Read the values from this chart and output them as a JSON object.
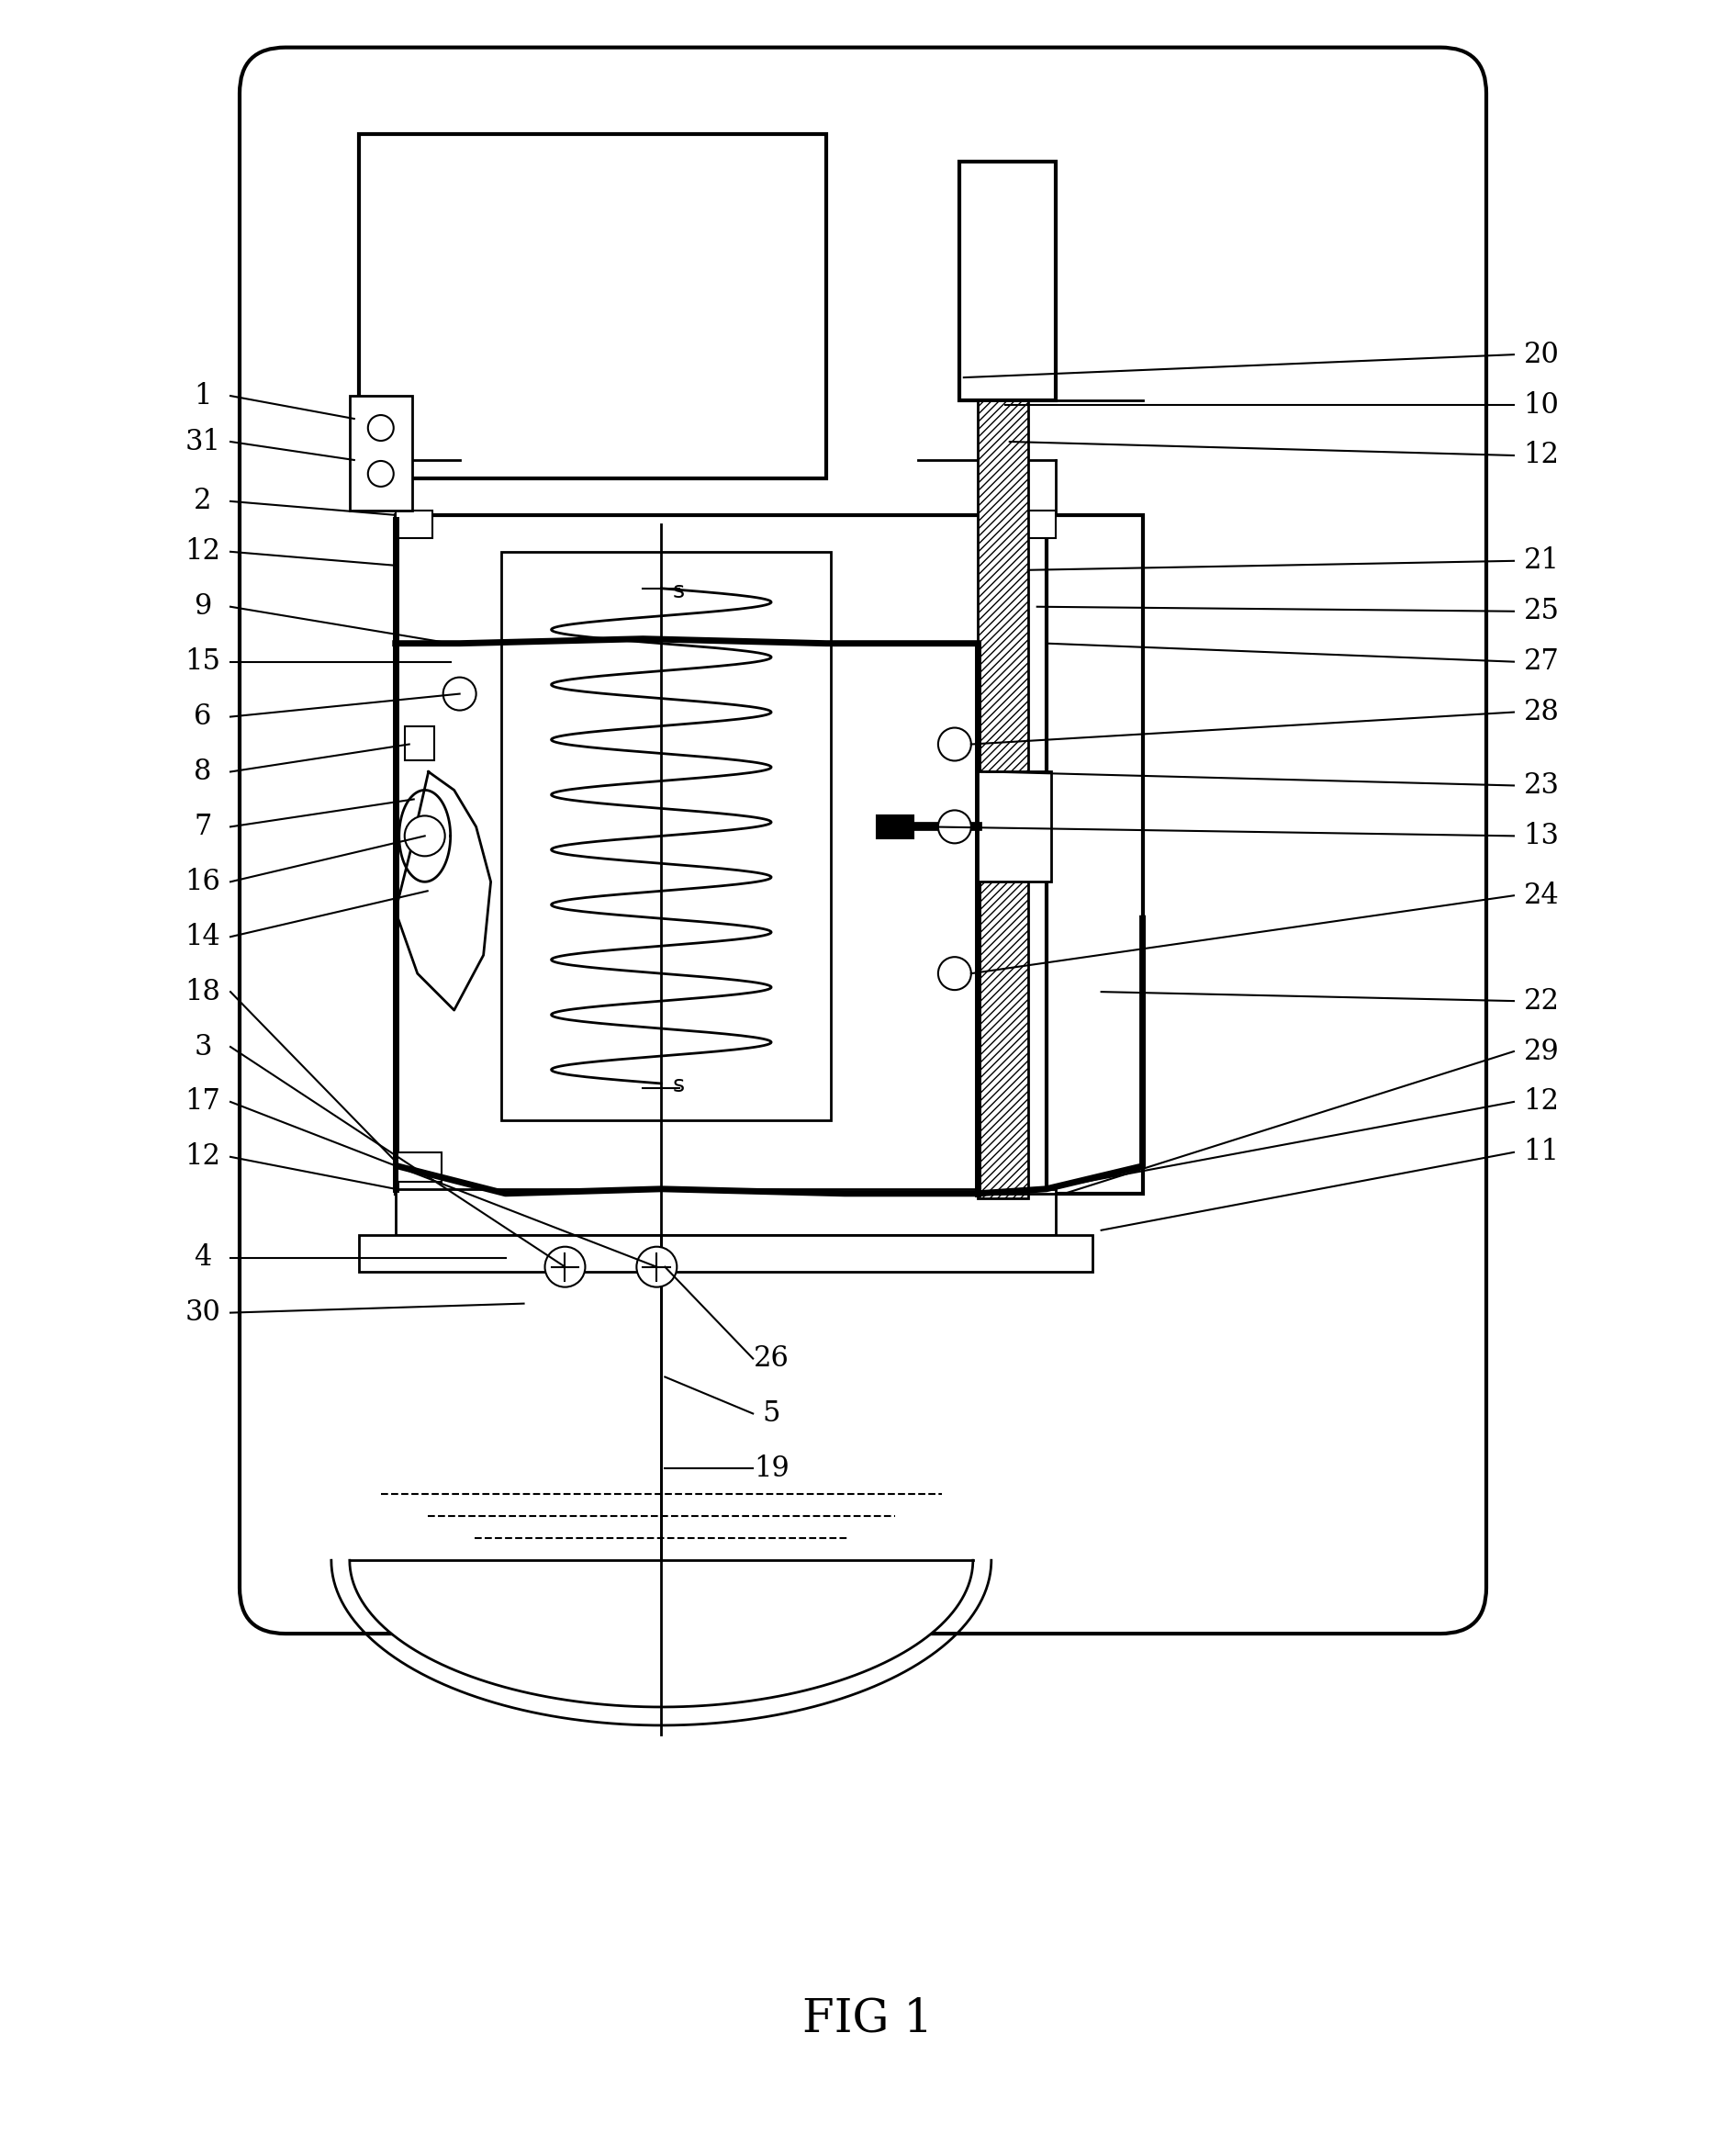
{
  "title": "FIG 1",
  "bg_color": "#ffffff",
  "line_color": "#000000",
  "fig_width": 18.91,
  "fig_height": 23.24
}
